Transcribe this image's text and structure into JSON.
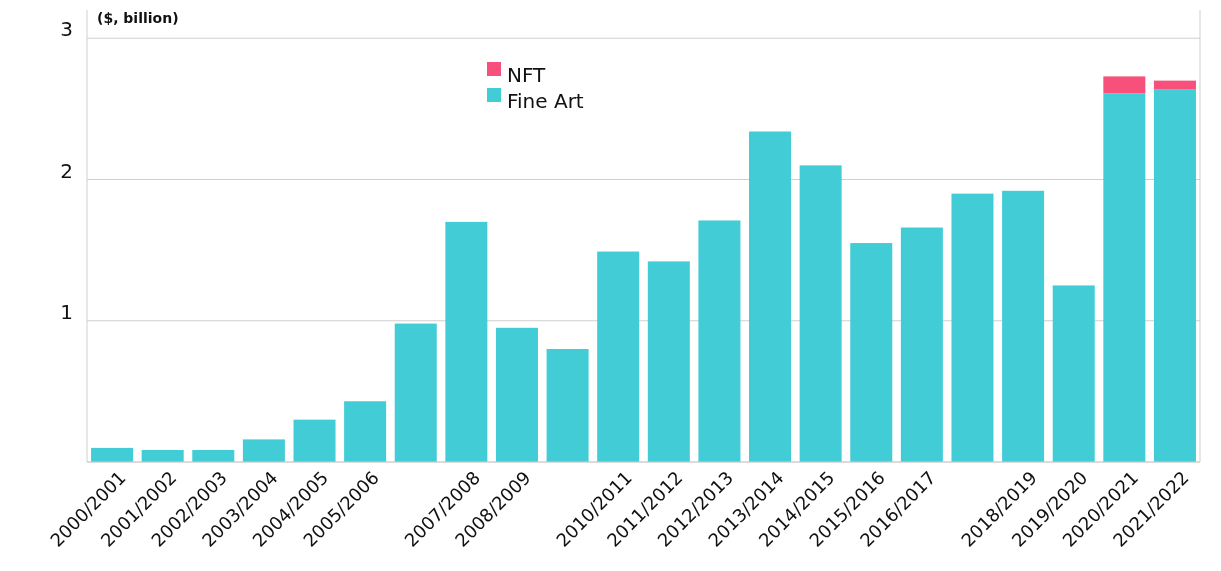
{
  "chart_data": {
    "type": "bar",
    "ylabel": "($, billion)",
    "stacked": true,
    "categories": [
      "2000/2001",
      "2001/2002",
      "2002/2003",
      "2003/2004",
      "2004/2005",
      "2005/2006",
      null,
      "2007/2008",
      "2008/2009",
      null,
      "2010/2011",
      "2011/2012",
      "2012/2013",
      "2013/2014",
      "2014/2015",
      "2015/2016",
      "2016/2017",
      null,
      "2018/2019",
      "2019/2020",
      "2020/2021",
      "2021/2022"
    ],
    "series": [
      {
        "name": "Fine Art",
        "color": "#42ccd6",
        "values": [
          0.1,
          0.085,
          0.085,
          0.16,
          0.3,
          0.43,
          0.98,
          1.7,
          0.95,
          0.8,
          1.49,
          1.42,
          1.71,
          2.34,
          2.1,
          1.55,
          1.66,
          1.9,
          1.92,
          1.25,
          2.61,
          2.64
        ]
      },
      {
        "name": "NFT",
        "color": "#f7507a",
        "values": [
          null,
          null,
          null,
          null,
          null,
          null,
          null,
          null,
          null,
          null,
          null,
          null,
          null,
          null,
          null,
          null,
          null,
          null,
          null,
          null,
          0.12,
          0.06
        ]
      }
    ],
    "ylim": [
      0,
      3.2
    ],
    "yticks": [
      {
        "value": 0,
        "label": null
      },
      1,
      2,
      3
    ],
    "grid": "y",
    "legend": "top"
  }
}
